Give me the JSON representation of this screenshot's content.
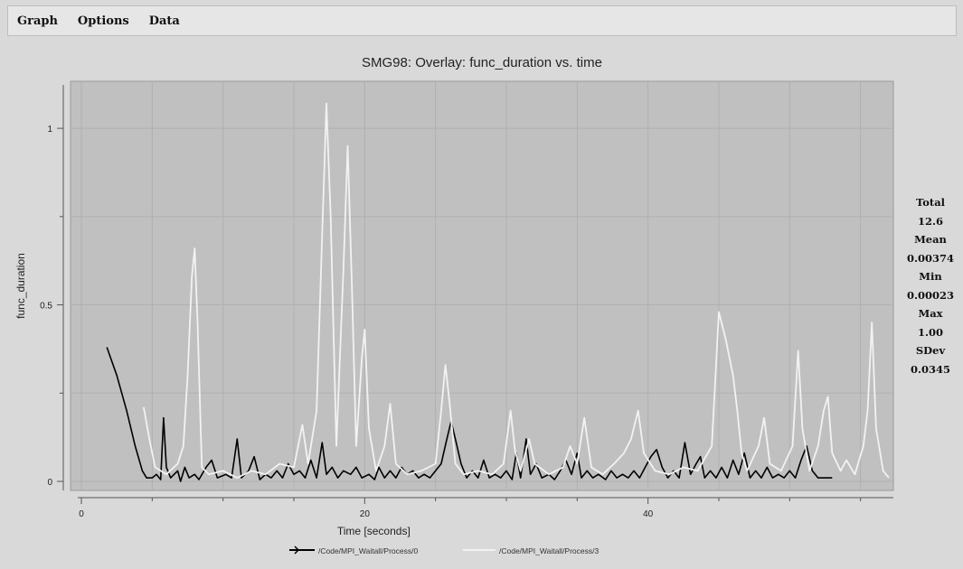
{
  "menu": {
    "graph": "Graph",
    "options": "Options",
    "data": "Data"
  },
  "stats": {
    "total_label": "Total",
    "total": "12.6",
    "mean_label": "Mean",
    "mean": "0.00374",
    "min_label": "Min",
    "min": "0.00023",
    "max_label": "Max",
    "max": "1.00",
    "sdev_label": "SDev",
    "sdev": "0.0345"
  },
  "colors": {
    "plot_bg": "#c0c0c0",
    "series_black": "#000000",
    "series_white": "#f2f2f2"
  },
  "chart_data": {
    "type": "line",
    "title": "SMG98: Overlay: func_duration vs. time",
    "xlabel": "Time [seconds]",
    "ylabel": "func_duration",
    "xlim": [
      0,
      57
    ],
    "ylim": [
      0,
      1.1
    ],
    "x_ticks": [
      0,
      20,
      40
    ],
    "x_tick_labels": [
      "0",
      "20",
      "40"
    ],
    "y_ticks": [
      0,
      0.5,
      1
    ],
    "y_tick_labels": [
      "0",
      "0.5",
      "1"
    ],
    "grid": true,
    "legend_position": "bottom",
    "series": [
      {
        "name": "/Code/MPI_Waitall/Process/0",
        "color": "#000000",
        "points": [
          [
            1.8,
            0.38
          ],
          [
            2.5,
            0.3
          ],
          [
            3.2,
            0.2
          ],
          [
            3.8,
            0.1
          ],
          [
            4.3,
            0.03
          ],
          [
            4.6,
            0.01
          ],
          [
            5.0,
            0.01
          ],
          [
            5.3,
            0.02
          ],
          [
            5.6,
            0.005
          ],
          [
            5.8,
            0.18
          ],
          [
            6.0,
            0.04
          ],
          [
            6.3,
            0.01
          ],
          [
            6.8,
            0.03
          ],
          [
            7.0,
            0.0
          ],
          [
            7.3,
            0.04
          ],
          [
            7.6,
            0.01
          ],
          [
            8.0,
            0.02
          ],
          [
            8.3,
            0.005
          ],
          [
            8.8,
            0.04
          ],
          [
            9.2,
            0.06
          ],
          [
            9.6,
            0.01
          ],
          [
            10.2,
            0.02
          ],
          [
            10.6,
            0.01
          ],
          [
            11.0,
            0.12
          ],
          [
            11.3,
            0.01
          ],
          [
            11.8,
            0.03
          ],
          [
            12.2,
            0.07
          ],
          [
            12.6,
            0.005
          ],
          [
            13.0,
            0.02
          ],
          [
            13.4,
            0.01
          ],
          [
            13.8,
            0.03
          ],
          [
            14.2,
            0.01
          ],
          [
            14.6,
            0.05
          ],
          [
            15.0,
            0.02
          ],
          [
            15.4,
            0.03
          ],
          [
            15.8,
            0.01
          ],
          [
            16.2,
            0.06
          ],
          [
            16.6,
            0.01
          ],
          [
            17.0,
            0.11
          ],
          [
            17.3,
            0.02
          ],
          [
            17.7,
            0.04
          ],
          [
            18.1,
            0.01
          ],
          [
            18.5,
            0.03
          ],
          [
            19.0,
            0.02
          ],
          [
            19.4,
            0.04
          ],
          [
            19.8,
            0.01
          ],
          [
            20.3,
            0.02
          ],
          [
            20.7,
            0.005
          ],
          [
            21.0,
            0.04
          ],
          [
            21.4,
            0.01
          ],
          [
            21.8,
            0.03
          ],
          [
            22.2,
            0.01
          ],
          [
            22.6,
            0.04
          ],
          [
            23.0,
            0.02
          ],
          [
            23.4,
            0.03
          ],
          [
            23.8,
            0.01
          ],
          [
            24.2,
            0.02
          ],
          [
            24.6,
            0.01
          ],
          [
            25.0,
            0.03
          ],
          [
            25.4,
            0.05
          ],
          [
            25.8,
            0.12
          ],
          [
            26.1,
            0.17
          ],
          [
            26.4,
            0.12
          ],
          [
            26.8,
            0.05
          ],
          [
            27.2,
            0.01
          ],
          [
            27.6,
            0.03
          ],
          [
            28.0,
            0.01
          ],
          [
            28.4,
            0.06
          ],
          [
            28.8,
            0.01
          ],
          [
            29.2,
            0.02
          ],
          [
            29.6,
            0.01
          ],
          [
            30.0,
            0.03
          ],
          [
            30.4,
            0.005
          ],
          [
            30.7,
            0.08
          ],
          [
            31.0,
            0.01
          ],
          [
            31.4,
            0.12
          ],
          [
            31.7,
            0.02
          ],
          [
            32.1,
            0.05
          ],
          [
            32.5,
            0.01
          ],
          [
            33.0,
            0.02
          ],
          [
            33.4,
            0.005
          ],
          [
            33.8,
            0.03
          ],
          [
            34.2,
            0.06
          ],
          [
            34.6,
            0.02
          ],
          [
            35.0,
            0.08
          ],
          [
            35.3,
            0.01
          ],
          [
            35.7,
            0.03
          ],
          [
            36.1,
            0.01
          ],
          [
            36.5,
            0.02
          ],
          [
            37.0,
            0.005
          ],
          [
            37.4,
            0.03
          ],
          [
            37.8,
            0.01
          ],
          [
            38.2,
            0.02
          ],
          [
            38.6,
            0.01
          ],
          [
            39.0,
            0.03
          ],
          [
            39.4,
            0.01
          ],
          [
            39.8,
            0.04
          ],
          [
            40.2,
            0.07
          ],
          [
            40.6,
            0.09
          ],
          [
            41.0,
            0.04
          ],
          [
            41.4,
            0.01
          ],
          [
            41.8,
            0.03
          ],
          [
            42.2,
            0.01
          ],
          [
            42.6,
            0.11
          ],
          [
            43.0,
            0.02
          ],
          [
            43.4,
            0.05
          ],
          [
            43.7,
            0.07
          ],
          [
            44.0,
            0.01
          ],
          [
            44.4,
            0.03
          ],
          [
            44.8,
            0.01
          ],
          [
            45.2,
            0.04
          ],
          [
            45.6,
            0.01
          ],
          [
            46.0,
            0.06
          ],
          [
            46.4,
            0.02
          ],
          [
            46.8,
            0.08
          ],
          [
            47.2,
            0.01
          ],
          [
            47.6,
            0.03
          ],
          [
            48.0,
            0.01
          ],
          [
            48.4,
            0.04
          ],
          [
            48.8,
            0.01
          ],
          [
            49.2,
            0.02
          ],
          [
            49.6,
            0.01
          ],
          [
            50.0,
            0.03
          ],
          [
            50.4,
            0.01
          ],
          [
            50.8,
            0.06
          ],
          [
            51.2,
            0.1
          ],
          [
            51.6,
            0.03
          ],
          [
            52.0,
            0.01
          ],
          [
            53.0,
            0.01
          ]
        ]
      },
      {
        "name": "/Code/MPI_Waitall/Process/3",
        "color": "#f2f2f2",
        "points": [
          [
            4.4,
            0.21
          ],
          [
            4.8,
            0.12
          ],
          [
            5.2,
            0.04
          ],
          [
            6.0,
            0.02
          ],
          [
            6.8,
            0.05
          ],
          [
            7.2,
            0.1
          ],
          [
            7.5,
            0.3
          ],
          [
            7.8,
            0.58
          ],
          [
            8.0,
            0.66
          ],
          [
            8.2,
            0.45
          ],
          [
            8.5,
            0.04
          ],
          [
            9.0,
            0.02
          ],
          [
            10.0,
            0.03
          ],
          [
            11.0,
            0.01
          ],
          [
            12.0,
            0.03
          ],
          [
            13.0,
            0.02
          ],
          [
            14.0,
            0.05
          ],
          [
            15.0,
            0.04
          ],
          [
            15.6,
            0.16
          ],
          [
            16.0,
            0.05
          ],
          [
            16.6,
            0.2
          ],
          [
            17.0,
            0.7
          ],
          [
            17.3,
            1.07
          ],
          [
            17.6,
            0.75
          ],
          [
            18.0,
            0.1
          ],
          [
            18.5,
            0.6
          ],
          [
            18.8,
            0.95
          ],
          [
            19.1,
            0.55
          ],
          [
            19.4,
            0.1
          ],
          [
            19.8,
            0.35
          ],
          [
            20.0,
            0.43
          ],
          [
            20.3,
            0.15
          ],
          [
            20.8,
            0.03
          ],
          [
            21.4,
            0.1
          ],
          [
            21.8,
            0.22
          ],
          [
            22.2,
            0.05
          ],
          [
            23.0,
            0.02
          ],
          [
            24.0,
            0.03
          ],
          [
            25.0,
            0.05
          ],
          [
            25.4,
            0.2
          ],
          [
            25.7,
            0.33
          ],
          [
            26.0,
            0.22
          ],
          [
            26.4,
            0.05
          ],
          [
            27.0,
            0.02
          ],
          [
            28.0,
            0.03
          ],
          [
            29.0,
            0.02
          ],
          [
            29.8,
            0.05
          ],
          [
            30.3,
            0.2
          ],
          [
            30.6,
            0.09
          ],
          [
            31.0,
            0.03
          ],
          [
            31.6,
            0.12
          ],
          [
            32.0,
            0.05
          ],
          [
            33.0,
            0.02
          ],
          [
            34.0,
            0.04
          ],
          [
            34.5,
            0.1
          ],
          [
            35.0,
            0.05
          ],
          [
            35.5,
            0.18
          ],
          [
            36.0,
            0.04
          ],
          [
            36.8,
            0.02
          ],
          [
            37.6,
            0.05
          ],
          [
            38.3,
            0.08
          ],
          [
            38.8,
            0.12
          ],
          [
            39.3,
            0.2
          ],
          [
            39.7,
            0.08
          ],
          [
            40.5,
            0.03
          ],
          [
            41.5,
            0.02
          ],
          [
            42.5,
            0.04
          ],
          [
            43.5,
            0.03
          ],
          [
            44.5,
            0.1
          ],
          [
            45.0,
            0.48
          ],
          [
            45.5,
            0.4
          ],
          [
            46.0,
            0.3
          ],
          [
            46.3,
            0.2
          ],
          [
            46.6,
            0.08
          ],
          [
            47.0,
            0.03
          ],
          [
            47.8,
            0.1
          ],
          [
            48.2,
            0.18
          ],
          [
            48.6,
            0.05
          ],
          [
            49.4,
            0.03
          ],
          [
            50.2,
            0.1
          ],
          [
            50.6,
            0.37
          ],
          [
            50.9,
            0.15
          ],
          [
            51.4,
            0.03
          ],
          [
            52.0,
            0.1
          ],
          [
            52.4,
            0.2
          ],
          [
            52.7,
            0.24
          ],
          [
            53.0,
            0.08
          ],
          [
            53.6,
            0.03
          ],
          [
            54.0,
            0.06
          ],
          [
            54.6,
            0.02
          ],
          [
            55.2,
            0.1
          ],
          [
            55.5,
            0.2
          ],
          [
            55.8,
            0.45
          ],
          [
            56.1,
            0.15
          ],
          [
            56.6,
            0.03
          ],
          [
            57.0,
            0.01
          ]
        ]
      }
    ]
  }
}
